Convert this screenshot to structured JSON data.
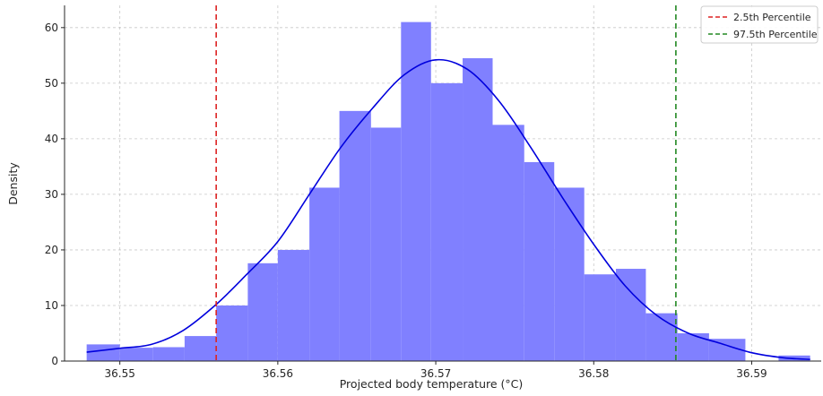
{
  "chart_data": {
    "type": "bar",
    "title": "",
    "xlabel": "Projected body temperature (°C)",
    "ylabel": "Density",
    "xlim": [
      36.5465,
      36.5944
    ],
    "ylim": [
      0,
      64
    ],
    "x_ticks": [
      36.55,
      36.56,
      36.57,
      36.58,
      36.59
    ],
    "x_tick_labels": [
      "36.55",
      "36.56",
      "36.57",
      "36.58",
      "36.59"
    ],
    "y_ticks": [
      0,
      10,
      20,
      30,
      40,
      50,
      60
    ],
    "y_tick_labels": [
      "0",
      "10",
      "20",
      "30",
      "40",
      "50",
      "60"
    ],
    "grid": true,
    "legend_position": "top-right",
    "histogram": {
      "color": "#8080ff",
      "bins": [
        {
          "x0": 36.5479,
          "x1": 36.55,
          "density": 3.0
        },
        {
          "x0": 36.55,
          "x1": 36.5521,
          "density": 2.4
        },
        {
          "x0": 36.5521,
          "x1": 36.5541,
          "density": 2.5
        },
        {
          "x0": 36.5541,
          "x1": 36.5561,
          "density": 4.5
        },
        {
          "x0": 36.5561,
          "x1": 36.5581,
          "density": 10.0
        },
        {
          "x0": 36.5581,
          "x1": 36.56,
          "density": 17.6
        },
        {
          "x0": 36.56,
          "x1": 36.562,
          "density": 20.0
        },
        {
          "x0": 36.562,
          "x1": 36.5639,
          "density": 31.2
        },
        {
          "x0": 36.5639,
          "x1": 36.5659,
          "density": 45.0
        },
        {
          "x0": 36.5659,
          "x1": 36.5678,
          "density": 42.0
        },
        {
          "x0": 36.5678,
          "x1": 36.5697,
          "density": 61.0
        },
        {
          "x0": 36.5697,
          "x1": 36.5717,
          "density": 50.0
        },
        {
          "x0": 36.5717,
          "x1": 36.5736,
          "density": 54.5
        },
        {
          "x0": 36.5736,
          "x1": 36.5756,
          "density": 42.5
        },
        {
          "x0": 36.5756,
          "x1": 36.5775,
          "density": 35.8
        },
        {
          "x0": 36.5775,
          "x1": 36.5794,
          "density": 31.2
        },
        {
          "x0": 36.5794,
          "x1": 36.5814,
          "density": 15.6
        },
        {
          "x0": 36.5814,
          "x1": 36.5833,
          "density": 16.6
        },
        {
          "x0": 36.5833,
          "x1": 36.5853,
          "density": 8.6
        },
        {
          "x0": 36.5853,
          "x1": 36.5873,
          "density": 5.0
        },
        {
          "x0": 36.5873,
          "x1": 36.5896,
          "density": 4.0
        },
        {
          "x0": 36.5896,
          "x1": 36.5917,
          "density": 0.0
        },
        {
          "x0": 36.5917,
          "x1": 36.5937,
          "density": 1.0
        }
      ]
    },
    "kde": {
      "color": "#0000dd",
      "x": [
        36.5479,
        36.55,
        36.552,
        36.554,
        36.5561,
        36.558,
        36.56,
        36.562,
        36.564,
        36.566,
        36.568,
        36.57,
        36.572,
        36.574,
        36.576,
        36.578,
        36.58,
        36.582,
        36.584,
        36.586,
        36.588,
        36.59,
        36.592,
        36.5937
      ],
      "y": [
        1.6,
        2.3,
        3.0,
        5.5,
        10.2,
        15.5,
        21.5,
        30.0,
        38.5,
        45.5,
        51.5,
        54.2,
        52.5,
        46.8,
        38.5,
        29.5,
        21.0,
        13.5,
        8.2,
        5.0,
        3.2,
        1.5,
        0.6,
        0.3
      ]
    },
    "lines": [
      {
        "name": "2.5th Percentile",
        "x": 36.5561,
        "color": "#dd2222"
      },
      {
        "name": "97.5th Percentile",
        "x": 36.5852,
        "color": "#228822"
      }
    ]
  }
}
